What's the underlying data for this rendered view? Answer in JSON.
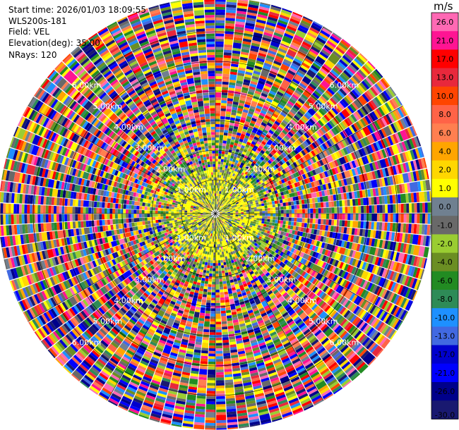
{
  "header": {
    "start_time": "Start time: 2026/01/03 18:09:55",
    "instrument": "WLS200s-181",
    "field": "Field: VEL",
    "elevation": "Elevation(deg): 35.00",
    "nrays": "NRays: 120"
  },
  "colorbar": {
    "unit": "m/s",
    "levels": [
      "26.0",
      "21.0",
      "17.0",
      "13.0",
      "10.0",
      "8.0",
      "6.0",
      "4.0",
      "2.0",
      "1.0",
      "0.0",
      "-1.0",
      "-2.0",
      "-4.0",
      "-6.0",
      "-8.0",
      "-10.0",
      "-13.0",
      "-17.0",
      "-21.0",
      "-26.0",
      "-30.0"
    ],
    "colors": [
      "#ff69b4",
      "#ff1493",
      "#ff0000",
      "#e8283c",
      "#ff4500",
      "#ff6347",
      "#ff7f50",
      "#ffa500",
      "#ffd700",
      "#ffff00",
      "#708090",
      "#696969",
      "#9acd32",
      "#6b8e23",
      "#228b22",
      "#2e8b57",
      "#1e90ff",
      "#4169e1",
      "#0000cd",
      "#0000ff",
      "#00008b",
      "#191970"
    ]
  },
  "chart_data": {
    "type": "heatmap",
    "projection": "polar (PPI)",
    "field": "VEL",
    "units": "m/s",
    "elevation_deg": 35.0,
    "n_rays": 120,
    "range_rings_km": [
      1.0,
      2.0,
      3.0,
      4.0,
      5.0,
      6.0
    ],
    "ring_labels": [
      "1.00km",
      "2.00km",
      "3.00km",
      "4.00km",
      "5.00km",
      "6.00km"
    ],
    "max_range_km": 7.3,
    "colorbar_range": [
      -30.0,
      26.0
    ],
    "pattern_note": "near-range (<1.4 km) mostly yellow/olive/slate; farther ranges noisy mixed colors"
  }
}
